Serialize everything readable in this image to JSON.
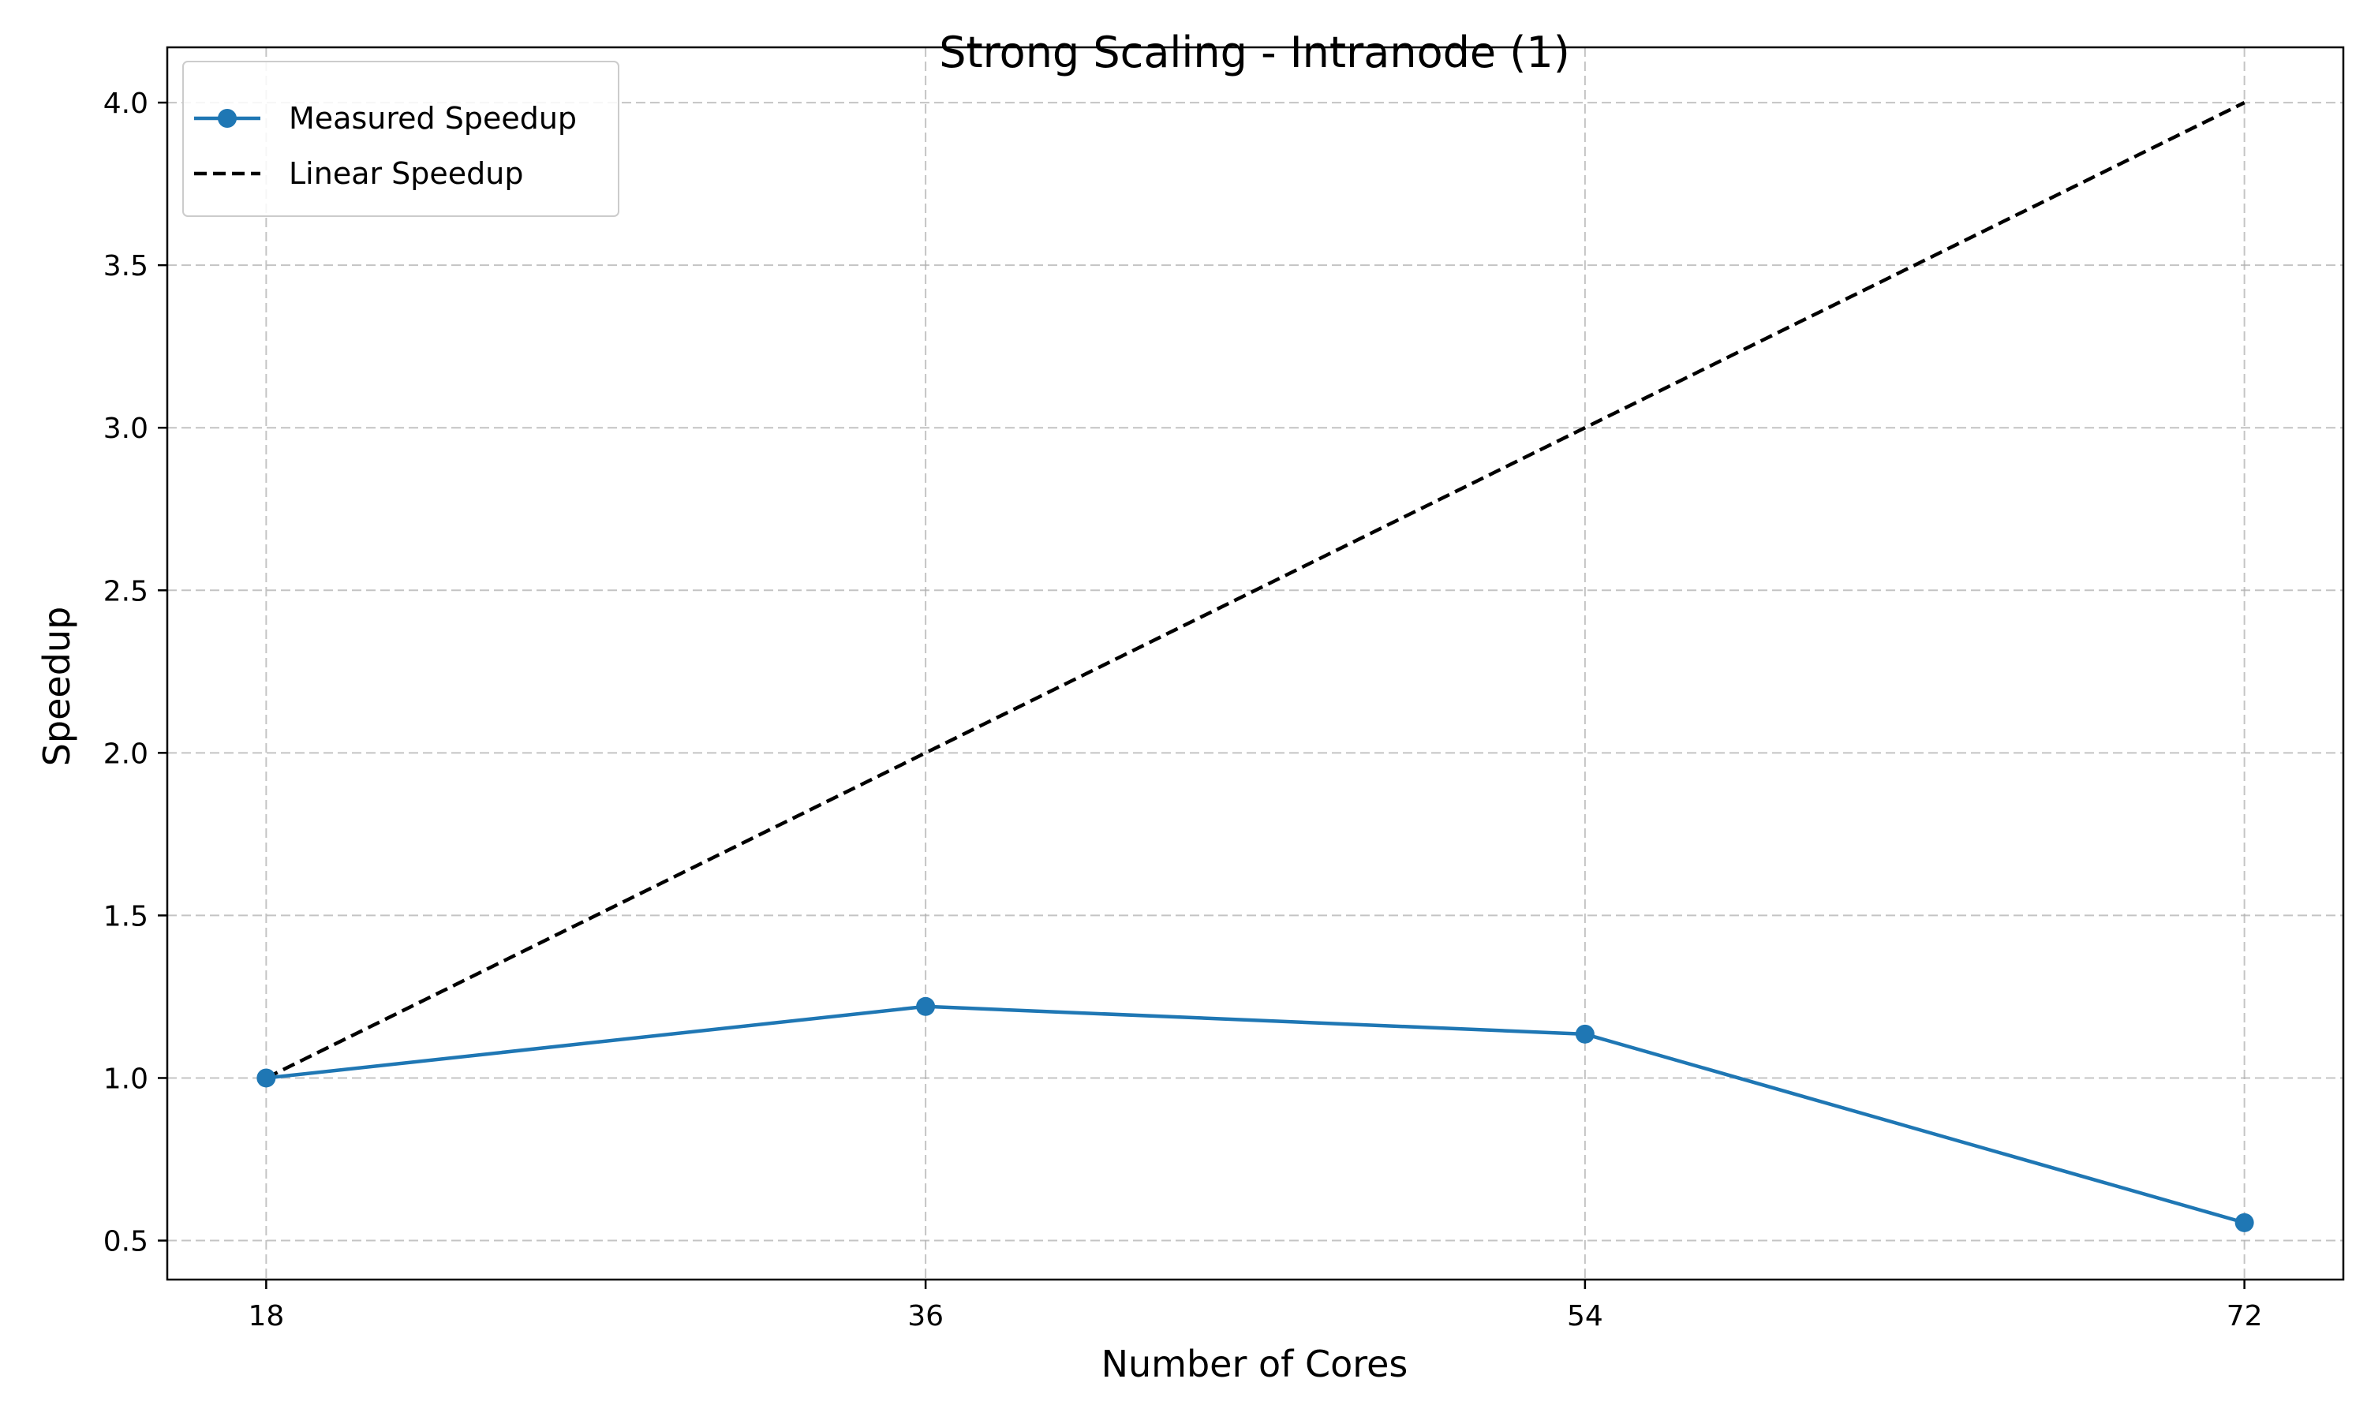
{
  "chart_data": {
    "type": "line",
    "title": "Strong Scaling - Intranode (1)",
    "xlabel": "Number of Cores",
    "ylabel": "Speedup",
    "x": [
      18,
      36,
      54,
      72
    ],
    "x_tick_labels": [
      "18",
      "36",
      "54",
      "72"
    ],
    "y_ticks": [
      0.5,
      1.0,
      1.5,
      2.0,
      2.5,
      3.0,
      3.5,
      4.0
    ],
    "y_tick_labels": [
      "0.5",
      "1.0",
      "1.5",
      "2.0",
      "2.5",
      "3.0",
      "3.5",
      "4.0"
    ],
    "xlim": [
      15.3,
      74.7
    ],
    "ylim": [
      0.38,
      4.17
    ],
    "grid": true,
    "legend_position": "top-left",
    "series": [
      {
        "name": "Measured Speedup",
        "values": [
          1.0,
          1.22,
          1.135,
          0.555
        ],
        "color": "#1f77b4",
        "style": "solid",
        "marker": "circle"
      },
      {
        "name": "Linear Speedup",
        "values": [
          1.0,
          2.0,
          3.0,
          4.0
        ],
        "color": "#000000",
        "style": "dashed",
        "marker": "none"
      }
    ]
  }
}
